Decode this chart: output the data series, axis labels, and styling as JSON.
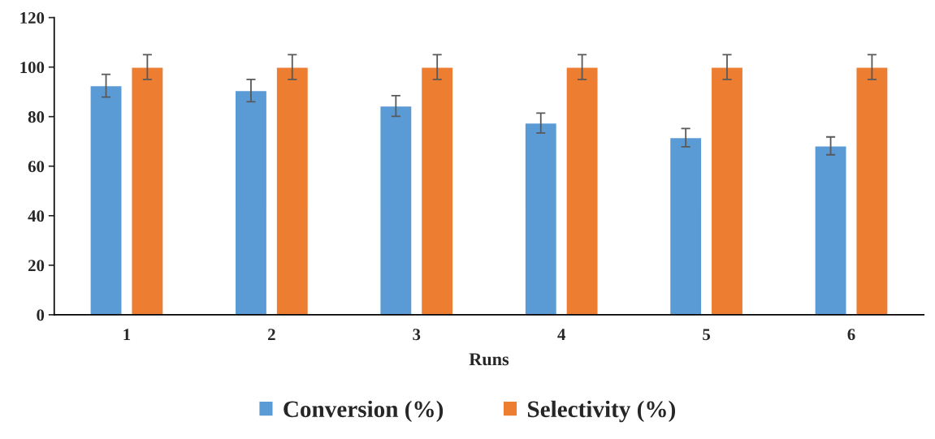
{
  "chart_data": {
    "type": "bar",
    "xlabel": "Runs",
    "categories": [
      "1",
      "2",
      "3",
      "4",
      "5",
      "6"
    ],
    "series": [
      {
        "name": "Conversion (%)",
        "color": "#5b9bd5",
        "values": [
          92.5,
          90.5,
          84.3,
          77.4,
          71.5,
          68.2
        ],
        "errors": [
          4.6,
          4.5,
          4.2,
          4.0,
          3.7,
          3.6
        ]
      },
      {
        "name": "Selectivity (%)",
        "color": "#ed7d31",
        "values": [
          100,
          100,
          100,
          100,
          100,
          100
        ],
        "errors": [
          5,
          5,
          5,
          5,
          5,
          5
        ]
      }
    ],
    "ylim": [
      0,
      120
    ],
    "yticks": [
      0,
      20,
      40,
      60,
      80,
      100,
      120
    ],
    "grid": false,
    "legend": "bottom"
  }
}
